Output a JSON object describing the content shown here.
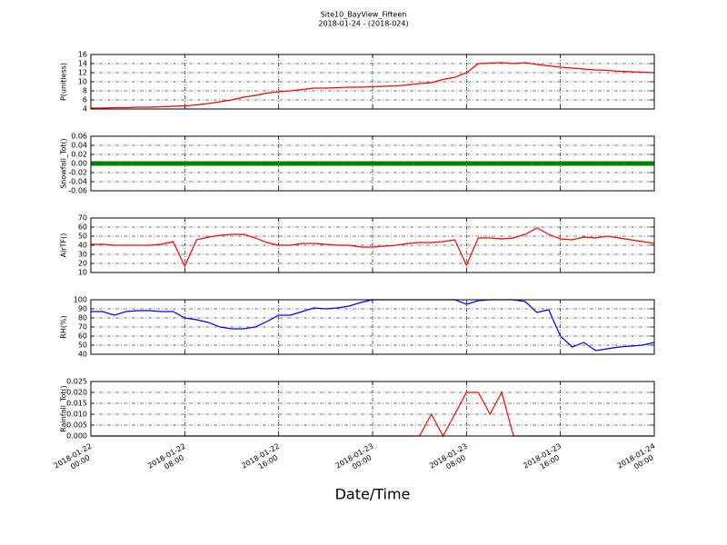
{
  "title": "Site10_BayView_Fifteen",
  "subtitle": "2018-01-24 - (2018-024)",
  "xlabel": "Date/Time",
  "chart_data": [
    {
      "type": "line",
      "ylabel": "P(unitless)",
      "x": [
        "2018-01-22 00:00",
        "2018-01-22 01:00",
        "2018-01-22 02:00",
        "2018-01-22 03:00",
        "2018-01-22 04:00",
        "2018-01-22 05:00",
        "2018-01-22 06:00",
        "2018-01-22 07:00",
        "2018-01-22 08:00",
        "2018-01-22 09:00",
        "2018-01-22 10:00",
        "2018-01-22 11:00",
        "2018-01-22 12:00",
        "2018-01-22 13:00",
        "2018-01-22 14:00",
        "2018-01-22 15:00",
        "2018-01-22 16:00",
        "2018-01-22 17:00",
        "2018-01-22 18:00",
        "2018-01-22 19:00",
        "2018-01-22 20:00",
        "2018-01-22 21:00",
        "2018-01-22 22:00",
        "2018-01-22 23:00",
        "2018-01-23 00:00",
        "2018-01-23 01:00",
        "2018-01-23 02:00",
        "2018-01-23 03:00",
        "2018-01-23 04:00",
        "2018-01-23 05:00",
        "2018-01-23 06:00",
        "2018-01-23 07:00",
        "2018-01-23 08:00",
        "2018-01-23 09:00",
        "2018-01-23 10:00",
        "2018-01-23 11:00",
        "2018-01-23 12:00",
        "2018-01-23 13:00",
        "2018-01-23 14:00",
        "2018-01-23 15:00",
        "2018-01-23 16:00",
        "2018-01-23 17:00",
        "2018-01-23 18:00",
        "2018-01-23 19:00",
        "2018-01-23 20:00",
        "2018-01-23 21:00",
        "2018-01-23 22:00",
        "2018-01-23 23:00",
        "2018-01-24 00:00"
      ],
      "values": [
        4.2,
        4.2,
        4.3,
        4.3,
        4.4,
        4.4,
        4.5,
        4.6,
        4.7,
        4.9,
        5.2,
        5.6,
        6.0,
        6.6,
        7.0,
        7.5,
        7.8,
        8.0,
        8.3,
        8.6,
        8.6,
        8.7,
        8.8,
        8.8,
        8.9,
        9.0,
        9.1,
        9.3,
        9.6,
        9.8,
        10.5,
        11.0,
        12.0,
        14.0,
        14.1,
        14.2,
        14.0,
        14.2,
        13.8,
        13.5,
        13.2,
        13.0,
        12.8,
        12.6,
        12.5,
        12.3,
        12.2,
        12.1,
        12.0
      ],
      "color": "#ff0000",
      "xlim": [
        "2018-01-22 00:00",
        "2018-01-24 00:00"
      ],
      "xticks": [
        "2018-01-22 00:00",
        "2018-01-22 08:00",
        "2018-01-22 16:00",
        "2018-01-23 00:00",
        "2018-01-23 08:00",
        "2018-01-23 16:00",
        "2018-01-24 00:00"
      ],
      "ylim": [
        4,
        16
      ],
      "yticks": [
        4,
        6,
        8,
        10,
        12,
        14,
        16
      ],
      "grid": true
    },
    {
      "type": "scatter",
      "ylabel": "Snowfall_Tot()",
      "x": [
        "2018-01-22 00:00",
        "2018-01-22 01:00",
        "2018-01-22 02:00",
        "2018-01-22 03:00",
        "2018-01-22 04:00",
        "2018-01-22 05:00",
        "2018-01-22 06:00",
        "2018-01-22 07:00",
        "2018-01-22 08:00",
        "2018-01-22 09:00",
        "2018-01-22 10:00",
        "2018-01-22 11:00",
        "2018-01-22 12:00",
        "2018-01-22 13:00",
        "2018-01-22 14:00",
        "2018-01-22 15:00",
        "2018-01-22 16:00",
        "2018-01-22 17:00",
        "2018-01-22 18:00",
        "2018-01-22 19:00",
        "2018-01-22 20:00",
        "2018-01-22 21:00",
        "2018-01-22 22:00",
        "2018-01-22 23:00",
        "2018-01-23 00:00",
        "2018-01-23 01:00",
        "2018-01-23 02:00",
        "2018-01-23 03:00",
        "2018-01-23 04:00",
        "2018-01-23 05:00",
        "2018-01-23 06:00",
        "2018-01-23 07:00",
        "2018-01-23 08:00",
        "2018-01-23 09:00",
        "2018-01-23 10:00",
        "2018-01-23 11:00",
        "2018-01-23 12:00",
        "2018-01-23 13:00",
        "2018-01-23 14:00",
        "2018-01-23 15:00",
        "2018-01-23 16:00",
        "2018-01-23 17:00",
        "2018-01-23 18:00",
        "2018-01-23 19:00",
        "2018-01-23 20:00",
        "2018-01-23 21:00",
        "2018-01-23 22:00",
        "2018-01-23 23:00",
        "2018-01-24 00:00"
      ],
      "values": [
        0,
        0,
        0,
        0,
        0,
        0,
        0,
        0,
        0,
        0,
        0,
        0,
        0,
        0,
        0,
        0,
        0,
        0,
        0,
        0,
        0,
        0,
        0,
        0,
        0,
        0,
        0,
        0,
        0,
        0,
        0,
        0,
        0,
        0,
        0,
        0,
        0,
        0,
        0,
        0,
        0,
        0,
        0,
        0,
        0,
        0,
        0,
        0,
        0
      ],
      "color": "#008000",
      "xlim": [
        "2018-01-22 00:00",
        "2018-01-24 00:00"
      ],
      "xticks": [
        "2018-01-22 00:00",
        "2018-01-22 08:00",
        "2018-01-22 16:00",
        "2018-01-23 00:00",
        "2018-01-23 08:00",
        "2018-01-23 16:00",
        "2018-01-24 00:00"
      ],
      "ylim": [
        -0.06,
        0.06
      ],
      "yticks": [
        -0.06,
        -0.04,
        -0.02,
        {
          "value": 0,
          "label": "0.00"
        },
        0.02,
        0.04,
        0.06
      ],
      "grid": true
    },
    {
      "type": "line",
      "ylabel": "AirTF()",
      "x": [
        "2018-01-22 00:00",
        "2018-01-22 01:00",
        "2018-01-22 02:00",
        "2018-01-22 03:00",
        "2018-01-22 04:00",
        "2018-01-22 05:00",
        "2018-01-22 06:00",
        "2018-01-22 07:00",
        "2018-01-22 08:00",
        "2018-01-22 09:00",
        "2018-01-22 10:00",
        "2018-01-22 11:00",
        "2018-01-22 12:00",
        "2018-01-22 13:00",
        "2018-01-22 14:00",
        "2018-01-22 15:00",
        "2018-01-22 16:00",
        "2018-01-22 17:00",
        "2018-01-22 18:00",
        "2018-01-22 19:00",
        "2018-01-22 20:00",
        "2018-01-22 21:00",
        "2018-01-22 22:00",
        "2018-01-22 23:00",
        "2018-01-23 00:00",
        "2018-01-23 01:00",
        "2018-01-23 02:00",
        "2018-01-23 03:00",
        "2018-01-23 04:00",
        "2018-01-23 05:00",
        "2018-01-23 06:00",
        "2018-01-23 07:00",
        "2018-01-23 08:00",
        "2018-01-23 09:00",
        "2018-01-23 10:00",
        "2018-01-23 11:00",
        "2018-01-23 12:00",
        "2018-01-23 13:00",
        "2018-01-23 14:00",
        "2018-01-23 15:00",
        "2018-01-23 16:00",
        "2018-01-23 17:00",
        "2018-01-23 18:00",
        "2018-01-23 19:00",
        "2018-01-23 20:00",
        "2018-01-23 21:00",
        "2018-01-23 22:00",
        "2018-01-23 23:00",
        "2018-01-24 00:00"
      ],
      "values": [
        41,
        41,
        40,
        40,
        40,
        40,
        41,
        44,
        17,
        46,
        49,
        51,
        52,
        52,
        48,
        43,
        40,
        40,
        42,
        42,
        41,
        40,
        40,
        38,
        38,
        39,
        40,
        42,
        43,
        43,
        44,
        46,
        18,
        48,
        48,
        47,
        48,
        52,
        59,
        52,
        47,
        46,
        49,
        48,
        50,
        48,
        46,
        44,
        42
      ],
      "color": "#ff0000",
      "xlim": [
        "2018-01-22 00:00",
        "2018-01-24 00:00"
      ],
      "xticks": [
        "2018-01-22 00:00",
        "2018-01-22 08:00",
        "2018-01-22 16:00",
        "2018-01-23 00:00",
        "2018-01-23 08:00",
        "2018-01-23 16:00",
        "2018-01-24 00:00"
      ],
      "ylim": [
        10,
        70
      ],
      "yticks": [
        10,
        20,
        30,
        40,
        50,
        60,
        70
      ],
      "grid": true
    },
    {
      "type": "line",
      "ylabel": "RH(%)",
      "x": [
        "2018-01-22 00:00",
        "2018-01-22 01:00",
        "2018-01-22 02:00",
        "2018-01-22 03:00",
        "2018-01-22 04:00",
        "2018-01-22 05:00",
        "2018-01-22 06:00",
        "2018-01-22 07:00",
        "2018-01-22 08:00",
        "2018-01-22 09:00",
        "2018-01-22 10:00",
        "2018-01-22 11:00",
        "2018-01-22 12:00",
        "2018-01-22 13:00",
        "2018-01-22 14:00",
        "2018-01-22 15:00",
        "2018-01-22 16:00",
        "2018-01-22 17:00",
        "2018-01-22 18:00",
        "2018-01-22 19:00",
        "2018-01-22 20:00",
        "2018-01-22 21:00",
        "2018-01-22 22:00",
        "2018-01-22 23:00",
        "2018-01-23 00:00",
        "2018-01-23 01:00",
        "2018-01-23 02:00",
        "2018-01-23 03:00",
        "2018-01-23 04:00",
        "2018-01-23 05:00",
        "2018-01-23 06:00",
        "2018-01-23 07:00",
        "2018-01-23 08:00",
        "2018-01-23 09:00",
        "2018-01-23 10:00",
        "2018-01-23 11:00",
        "2018-01-23 12:00",
        "2018-01-23 13:00",
        "2018-01-23 14:00",
        "2018-01-23 15:00",
        "2018-01-23 16:00",
        "2018-01-23 17:00",
        "2018-01-23 18:00",
        "2018-01-23 19:00",
        "2018-01-23 20:00",
        "2018-01-23 21:00",
        "2018-01-23 22:00",
        "2018-01-23 23:00",
        "2018-01-24 00:00"
      ],
      "values": [
        87,
        87,
        83,
        87,
        88,
        88,
        87,
        87,
        80,
        78,
        75,
        70,
        68,
        68,
        70,
        76,
        83,
        83,
        87,
        91,
        90,
        91,
        93,
        97,
        100,
        100,
        100,
        100,
        100,
        100,
        100,
        100,
        95,
        99,
        100,
        100,
        100,
        98,
        86,
        89,
        60,
        48,
        53,
        44,
        46,
        48,
        49,
        50,
        53
      ],
      "color": "#0000ff",
      "xlim": [
        "2018-01-22 00:00",
        "2018-01-24 00:00"
      ],
      "xticks": [
        "2018-01-22 00:00",
        "2018-01-22 08:00",
        "2018-01-22 16:00",
        "2018-01-23 00:00",
        "2018-01-23 08:00",
        "2018-01-23 16:00",
        "2018-01-24 00:00"
      ],
      "ylim": [
        40,
        100
      ],
      "yticks": [
        40,
        50,
        60,
        70,
        80,
        90,
        100
      ],
      "grid": true
    },
    {
      "type": "line",
      "ylabel": "Rainfall_Tot()",
      "x": [
        "2018-01-22 00:00",
        "2018-01-22 01:00",
        "2018-01-22 02:00",
        "2018-01-22 03:00",
        "2018-01-22 04:00",
        "2018-01-22 05:00",
        "2018-01-22 06:00",
        "2018-01-22 07:00",
        "2018-01-22 08:00",
        "2018-01-22 09:00",
        "2018-01-22 10:00",
        "2018-01-22 11:00",
        "2018-01-22 12:00",
        "2018-01-22 13:00",
        "2018-01-22 14:00",
        "2018-01-22 15:00",
        "2018-01-22 16:00",
        "2018-01-22 17:00",
        "2018-01-22 18:00",
        "2018-01-22 19:00",
        "2018-01-22 20:00",
        "2018-01-22 21:00",
        "2018-01-22 22:00",
        "2018-01-22 23:00",
        "2018-01-23 00:00",
        "2018-01-23 01:00",
        "2018-01-23 02:00",
        "2018-01-23 03:00",
        "2018-01-23 04:00",
        "2018-01-23 05:00",
        "2018-01-23 06:00",
        "2018-01-23 07:00",
        "2018-01-23 08:00",
        "2018-01-23 09:00",
        "2018-01-23 10:00",
        "2018-01-23 11:00",
        "2018-01-23 12:00",
        "2018-01-23 13:00",
        "2018-01-23 14:00",
        "2018-01-23 15:00",
        "2018-01-23 16:00",
        "2018-01-23 17:00",
        "2018-01-23 18:00",
        "2018-01-23 19:00",
        "2018-01-23 20:00",
        "2018-01-23 21:00",
        "2018-01-23 22:00",
        "2018-01-23 23:00",
        "2018-01-24 00:00"
      ],
      "values": [
        0,
        0,
        0,
        0,
        0,
        0,
        0,
        0,
        0,
        0,
        0,
        0,
        0,
        0,
        0,
        0,
        0,
        0,
        0,
        0,
        0,
        0,
        0,
        0,
        0,
        0,
        0,
        0,
        0,
        0.01,
        0,
        0.01,
        0.02,
        0.02,
        0.01,
        0.02,
        0,
        0,
        0,
        0,
        0,
        0,
        0,
        0,
        0,
        0,
        0,
        0,
        0
      ],
      "color": "#ff0000",
      "xlim": [
        "2018-01-22 00:00",
        "2018-01-24 00:00"
      ],
      "xticks": [
        "2018-01-22 00:00",
        "2018-01-22 08:00",
        "2018-01-22 16:00",
        "2018-01-23 00:00",
        "2018-01-23 08:00",
        "2018-01-23 16:00",
        "2018-01-24 00:00"
      ],
      "ylim": [
        0,
        0.025
      ],
      "yticks": [
        {
          "value": 0,
          "label": "0.000"
        },
        {
          "value": 0.005,
          "label": "0.005"
        },
        {
          "value": 0.01,
          "label": "0.010"
        },
        {
          "value": 0.015,
          "label": "0.015"
        },
        {
          "value": 0.02,
          "label": "0.020"
        },
        {
          "value": 0.025,
          "label": "0.025"
        }
      ],
      "grid": true
    }
  ]
}
